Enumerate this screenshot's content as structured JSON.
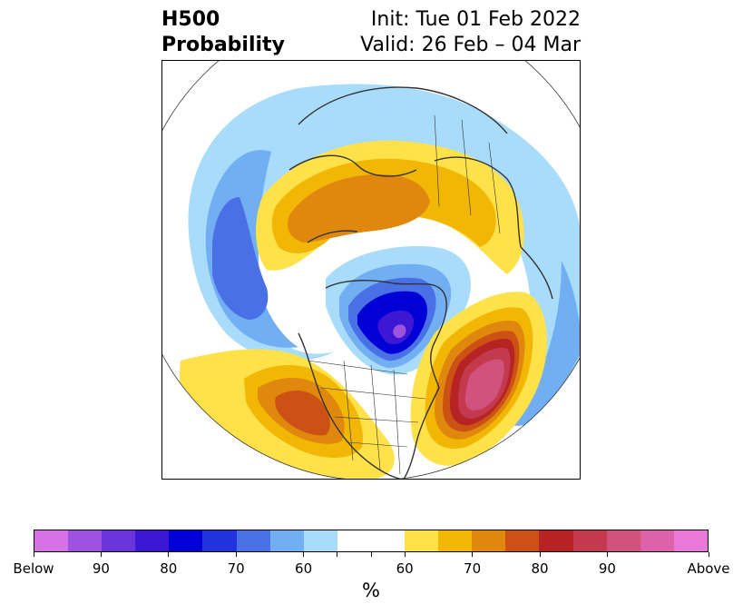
{
  "title": {
    "variable": "H500",
    "product": "Probability",
    "init": "Init: Tue 01 Feb 2022",
    "valid": "Valid: 26 Feb – 04 Mar"
  },
  "colorbar": {
    "colors": [
      "#d672e6",
      "#9e52e0",
      "#6b35dc",
      "#3e17d4",
      "#0000d6",
      "#2233dd",
      "#4a70e6",
      "#72aef2",
      "#a9dcfa",
      "#ffffff",
      "#ffffff",
      "#ffe14a",
      "#f2b705",
      "#e0880e",
      "#cb5214",
      "#b72222",
      "#c33a4e",
      "#d2527e",
      "#de62a8",
      "#e879d9"
    ],
    "tick_labels": [
      "Below",
      "90",
      "80",
      "70",
      "60",
      "60",
      "70",
      "80",
      "90",
      "Above"
    ],
    "unit": "%"
  },
  "palette": {
    "below_light": "#a9dcfa",
    "below_mid": "#72aef2",
    "below_strong": "#4a70e6",
    "below_deep": "#0000d6",
    "below_max": "#3e17d4",
    "below_core": "#9e52e0",
    "above_light": "#ffe14a",
    "above_mid": "#f2b705",
    "above_strong": "#e0880e",
    "above_deep": "#cb5214",
    "above_red": "#b72222",
    "above_rose": "#c33a4e",
    "above_pink": "#d2527e",
    "map_lines": "#333333"
  }
}
